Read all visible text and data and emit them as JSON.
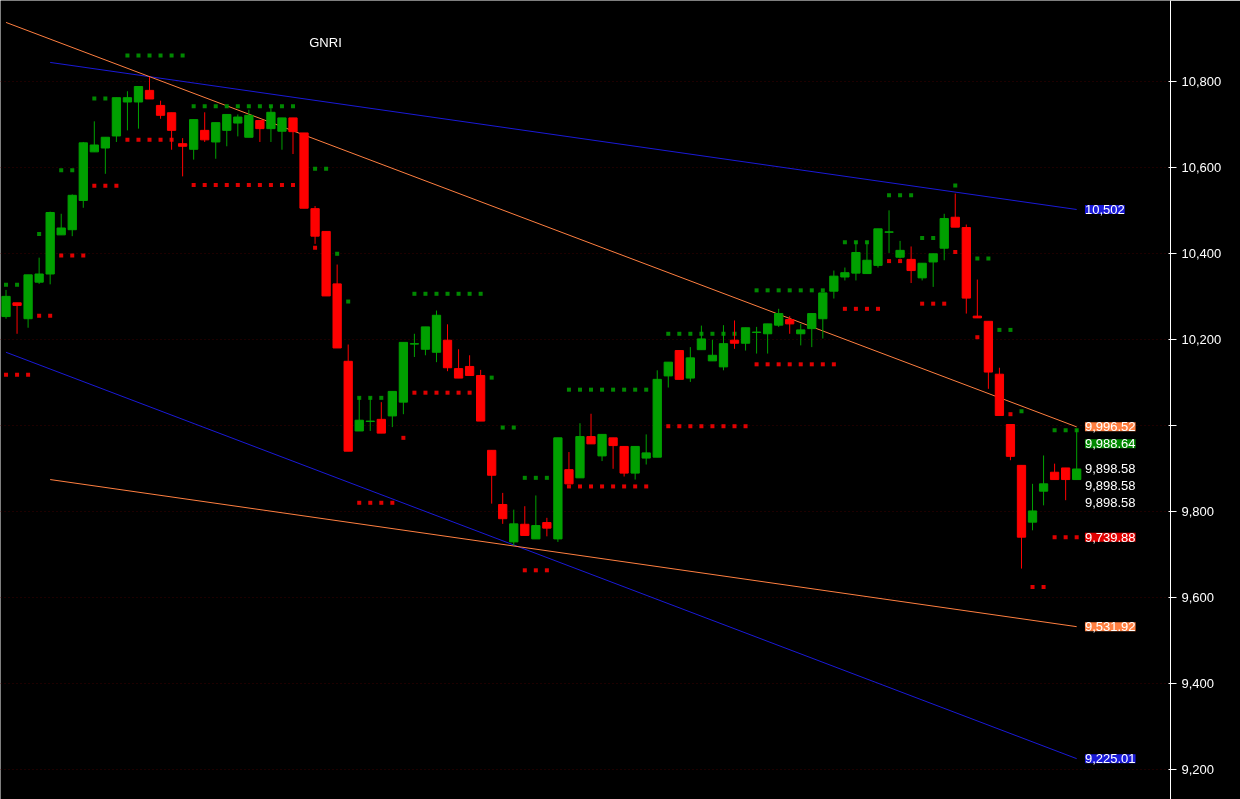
{
  "chart_data": {
    "type": "candlestick",
    "title": "GNRI",
    "categories": [
      null,
      null,
      null,
      null,
      null,
      null,
      null,
      null,
      null,
      null,
      null,
      null,
      null,
      null,
      null,
      null,
      null,
      null,
      null,
      null,
      null,
      null,
      null,
      null,
      null,
      null,
      null,
      null,
      null,
      null,
      null,
      null,
      null,
      null,
      null,
      null,
      null,
      null,
      null,
      null,
      null,
      null,
      null,
      null,
      null,
      null,
      null,
      null,
      null,
      null,
      null,
      null,
      null,
      null,
      null,
      null,
      null,
      null,
      null,
      null,
      null,
      null,
      null,
      null,
      null,
      null,
      null,
      null,
      null,
      null,
      null,
      null,
      null,
      null,
      null,
      null,
      null,
      null,
      null,
      null,
      null,
      null,
      null,
      null,
      null,
      null,
      null,
      null,
      null,
      null,
      null,
      null,
      null,
      null,
      null,
      null,
      null,
      null,
      null,
      null,
      null,
      null,
      null,
      null,
      null,
      null
    ],
    "ohlc": [
      [
        10253,
        10315,
        10248,
        10300
      ],
      [
        10285,
        10285,
        10213,
        10279
      ],
      [
        10248,
        10350,
        10227,
        10350
      ],
      [
        10333,
        10390,
        10329,
        10352
      ],
      [
        10352,
        10497,
        10328,
        10495
      ],
      [
        10443,
        10492,
        10443,
        10459
      ],
      [
        10455,
        10537,
        10440,
        10535
      ],
      [
        10523,
        10659,
        10506,
        10657
      ],
      [
        10636,
        10707,
        10636,
        10652
      ],
      [
        10645,
        10670,
        10585,
        10670
      ],
      [
        10673,
        10762,
        10659,
        10762
      ],
      [
        10752,
        10777,
        10686,
        10762
      ],
      [
        10752,
        10788,
        10690,
        10788
      ],
      [
        10779,
        10810,
        10759,
        10759
      ],
      [
        10744,
        10755,
        10713,
        10721
      ],
      [
        10727,
        10727,
        10641,
        10686
      ],
      [
        10655,
        10668,
        10579,
        10649
      ],
      [
        10642,
        10711,
        10618,
        10711
      ],
      [
        10686,
        10728,
        10659,
        10664
      ],
      [
        10659,
        10704,
        10620,
        10704
      ],
      [
        10686,
        10723,
        10649,
        10723
      ],
      [
        10703,
        10723,
        10672,
        10717
      ],
      [
        10670,
        10734,
        10670,
        10721
      ],
      [
        10709,
        10709,
        10659,
        10690
      ],
      [
        10690,
        10744,
        10659,
        10728
      ],
      [
        10684,
        10715,
        10641,
        10715
      ],
      [
        10715,
        10715,
        10631,
        10683
      ],
      [
        10680,
        10680,
        10505,
        10505
      ],
      [
        10504,
        10510,
        10422,
        10440
      ],
      [
        10451,
        10451,
        10301,
        10301
      ],
      [
        10329,
        10374,
        10180,
        10180
      ],
      [
        10149,
        10188,
        9940,
        9940
      ],
      [
        9987,
        10066,
        9987,
        10012
      ],
      [
        10009,
        10066,
        9987,
        10010
      ],
      [
        10014,
        10054,
        9982,
        9982
      ],
      [
        10022,
        10079,
        9996,
        10079
      ],
      [
        10054,
        10193,
        10026,
        10193
      ],
      [
        10189,
        10213,
        10159,
        10190
      ],
      [
        10177,
        10229,
        10163,
        10229
      ],
      [
        10170,
        10267,
        10147,
        10256
      ],
      [
        10198,
        10235,
        10126,
        10134
      ],
      [
        10132,
        10177,
        10110,
        10110
      ],
      [
        10137,
        10163,
        10116,
        10116
      ],
      [
        10116,
        10129,
        10010,
        10010
      ],
      [
        9942,
        9942,
        9818,
        9884
      ],
      [
        9816,
        9843,
        9771,
        9783
      ],
      [
        9729,
        9804,
        9721,
        9771
      ],
      [
        9770,
        9812,
        9744,
        9744
      ],
      [
        9736,
        9837,
        9736,
        9767
      ],
      [
        9774,
        9785,
        9742,
        9761
      ],
      [
        9736,
        9971,
        9729,
        9971
      ],
      [
        9897,
        9938,
        9864,
        9864
      ],
      [
        9878,
        10005,
        9878,
        9974
      ],
      [
        9974,
        10027,
        9957,
        9957
      ],
      [
        9929,
        9979,
        9917,
        9979
      ],
      [
        9971,
        9971,
        9899,
        9953
      ],
      [
        9951,
        9951,
        9881,
        9889
      ],
      [
        9889,
        9951,
        9874,
        9951
      ],
      [
        9924,
        9979,
        9909,
        9936
      ],
      [
        9926,
        10128,
        9926,
        10107
      ],
      [
        10115,
        10147,
        10088,
        10147
      ],
      [
        10174,
        10174,
        10107,
        10107
      ],
      [
        10110,
        10182,
        10101,
        10157
      ],
      [
        10176,
        10232,
        10176,
        10201
      ],
      [
        10150,
        10199,
        10150,
        10163
      ],
      [
        10136,
        10233,
        10128,
        10190
      ],
      [
        10198,
        10244,
        10178,
        10191
      ],
      [
        10191,
        10227,
        10174,
        10227
      ],
      [
        10216,
        10229,
        10167,
        10217
      ],
      [
        10213,
        10236,
        10167,
        10236
      ],
      [
        10233,
        10271,
        10229,
        10260
      ],
      [
        10246,
        10254,
        10213,
        10236
      ],
      [
        10213,
        10236,
        10186,
        10222
      ],
      [
        10225,
        10260,
        10182,
        10260
      ],
      [
        10248,
        10308,
        10202,
        10308
      ],
      [
        10312,
        10360,
        10295,
        10347
      ],
      [
        10345,
        10367,
        10337,
        10355
      ],
      [
        10354,
        10429,
        10337,
        10402
      ],
      [
        10353,
        10429,
        10353,
        10384
      ],
      [
        10372,
        10457,
        10367,
        10457
      ],
      [
        10449,
        10500,
        10401,
        10450
      ],
      [
        10391,
        10429,
        10388,
        10407
      ],
      [
        10386,
        10416,
        10331,
        10360
      ],
      [
        10343,
        10377,
        10337,
        10377
      ],
      [
        10380,
        10399,
        10322,
        10399
      ],
      [
        10412,
        10492,
        10384,
        10481
      ],
      [
        10484,
        10539,
        10461,
        10461
      ],
      [
        10460,
        10467,
        10260,
        10296
      ],
      [
        10254,
        10339,
        10250,
        10250
      ],
      [
        10242,
        10242,
        10085,
        10124
      ],
      [
        10119,
        10134,
        10023,
        10023
      ],
      [
        10002,
        10002,
        9919,
        9928
      ],
      [
        9907,
        9907,
        9667,
        9740
      ],
      [
        9775,
        9864,
        9756,
        9801
      ],
      [
        9847,
        9930,
        9814,
        9864
      ],
      [
        9891,
        9911,
        9874,
        9874
      ],
      [
        9901,
        9901,
        9826,
        9874
      ],
      [
        9874,
        9992,
        9874,
        9898.58
      ],
      null,
      null,
      null,
      null,
      null,
      null,
      null,
      null
    ],
    "colors": [
      "#00a000",
      "#ff0000",
      "#00a000",
      "#00a000",
      "#00a000",
      "#00a000",
      "#00a000",
      "#00a000",
      "#00a000",
      "#00a000",
      "#00a000",
      "#00a000",
      "#00a000",
      "#ff0000",
      "#ff0000",
      "#ff0000",
      "#ff0000",
      "#00a000",
      "#ff0000",
      "#00a000",
      "#00a000",
      "#00a000",
      "#00a000",
      "#ff0000",
      "#00a000",
      "#00a000",
      "#ff0000",
      "#ff0000",
      "#ff0000",
      "#ff0000",
      "#ff0000",
      "#ff0000",
      "#00a000",
      "#00a000",
      "#ff0000",
      "#00a000",
      "#00a000",
      "#00a000",
      "#00a000",
      "#00a000",
      "#ff0000",
      "#ff0000",
      "#ff0000",
      "#ff0000",
      "#ff0000",
      "#ff0000",
      "#00a000",
      "#ff0000",
      "#00a000",
      "#ff0000",
      "#00a000",
      "#ff0000",
      "#00a000",
      "#ff0000",
      "#00a000",
      "#ff0000",
      "#ff0000",
      "#00a000",
      "#00a000",
      "#00a000",
      "#00a000",
      "#ff0000",
      "#00a000",
      "#00a000",
      "#00a000",
      "#00a000",
      "#ff0000",
      "#00a000",
      "#00a000",
      "#00a000",
      "#00a000",
      "#ff0000",
      "#00a000",
      "#00a000",
      "#00a000",
      "#00a000",
      "#00a000",
      "#00a000",
      "#00a000",
      "#00a000",
      "#00a000",
      "#00a000",
      "#ff0000",
      "#00a000",
      "#00a000",
      "#00a000",
      "#ff0000",
      "#ff0000",
      "#ff0000",
      "#ff0000",
      "#ff0000",
      "#ff0000",
      "#ff0000",
      "#00a000",
      "#00a000",
      "#ff0000",
      "#ff0000",
      "#00a000",
      null,
      null,
      null,
      null,
      null,
      null,
      null,
      null
    ],
    "series": [
      {
        "type": "line",
        "color": "#1a1ad8",
        "values": [
          null,
          null,
          null,
          null,
          10844,
          null,
          null,
          null,
          null,
          null,
          null,
          null,
          null,
          null,
          null,
          null,
          null,
          null,
          null,
          null,
          null,
          null,
          null,
          null,
          null,
          null,
          null,
          null,
          null,
          null,
          null,
          null,
          null,
          null,
          null,
          null,
          null,
          null,
          null,
          null,
          null,
          null,
          null,
          null,
          null,
          null,
          null,
          null,
          null,
          null,
          null,
          null,
          null,
          null,
          null,
          null,
          null,
          null,
          null,
          null,
          null,
          null,
          null,
          null,
          null,
          null,
          null,
          null,
          null,
          null,
          null,
          null,
          null,
          null,
          null,
          null,
          null,
          null,
          null,
          null,
          null,
          null,
          null,
          null,
          null,
          null,
          null,
          null,
          null,
          null,
          null,
          null,
          null,
          null,
          null,
          null,
          null,
          10502,
          null,
          null,
          null,
          null,
          null,
          null,
          null,
          null
        ],
        "value_labels": [
          null,
          null,
          null,
          null,
          null,
          null,
          null,
          null,
          null,
          null,
          null,
          null,
          null,
          null,
          null,
          null,
          null,
          null,
          null,
          null,
          null,
          null,
          null,
          null,
          null,
          null,
          null,
          null,
          null,
          null,
          null,
          null,
          null,
          null,
          null,
          null,
          null,
          null,
          null,
          null,
          null,
          null,
          null,
          null,
          null,
          null,
          null,
          null,
          null,
          null,
          null,
          null,
          null,
          null,
          null,
          null,
          null,
          null,
          null,
          null,
          null,
          null,
          null,
          null,
          null,
          null,
          null,
          null,
          null,
          null,
          null,
          null,
          null,
          null,
          null,
          null,
          null,
          null,
          null,
          null,
          null,
          null,
          null,
          null,
          null,
          null,
          null,
          null,
          null,
          null,
          null,
          null,
          null,
          null,
          null,
          null,
          null,
          "10,502",
          null,
          null,
          null,
          null,
          null,
          null,
          null,
          null
        ]
      },
      {
        "type": "line",
        "color": "#1a1ad8",
        "values": [
          10170,
          null,
          null,
          null,
          null,
          null,
          null,
          null,
          null,
          null,
          null,
          null,
          null,
          null,
          null,
          null,
          null,
          null,
          null,
          null,
          null,
          null,
          null,
          null,
          null,
          null,
          null,
          null,
          null,
          null,
          null,
          null,
          null,
          null,
          null,
          null,
          null,
          null,
          null,
          null,
          null,
          null,
          null,
          null,
          null,
          null,
          null,
          null,
          null,
          null,
          null,
          null,
          null,
          null,
          null,
          null,
          null,
          null,
          null,
          null,
          null,
          null,
          null,
          null,
          null,
          null,
          null,
          null,
          null,
          null,
          null,
          null,
          null,
          null,
          null,
          null,
          null,
          null,
          null,
          null,
          null,
          null,
          null,
          null,
          null,
          null,
          null,
          null,
          null,
          null,
          null,
          null,
          null,
          null,
          null,
          null,
          null,
          9225.01,
          null,
          null,
          null,
          null,
          null,
          null,
          null,
          null
        ],
        "value_labels": [
          null,
          null,
          null,
          null,
          null,
          null,
          null,
          null,
          null,
          null,
          null,
          null,
          null,
          null,
          null,
          null,
          null,
          null,
          null,
          null,
          null,
          null,
          null,
          null,
          null,
          null,
          null,
          null,
          null,
          null,
          null,
          null,
          null,
          null,
          null,
          null,
          null,
          null,
          null,
          null,
          null,
          null,
          null,
          null,
          null,
          null,
          null,
          null,
          null,
          null,
          null,
          null,
          null,
          null,
          null,
          null,
          null,
          null,
          null,
          null,
          null,
          null,
          null,
          null,
          null,
          null,
          null,
          null,
          null,
          null,
          null,
          null,
          null,
          null,
          null,
          null,
          null,
          null,
          null,
          null,
          null,
          null,
          null,
          null,
          null,
          null,
          null,
          null,
          null,
          null,
          null,
          null,
          null,
          null,
          null,
          null,
          null,
          "9,225.01",
          null,
          null,
          null,
          null,
          null,
          null,
          null,
          null
        ]
      },
      {
        "type": "line",
        "color": "#ff7f40",
        "values": [
          10937,
          null,
          null,
          null,
          null,
          null,
          null,
          null,
          null,
          null,
          null,
          null,
          null,
          null,
          null,
          null,
          null,
          null,
          null,
          null,
          null,
          null,
          null,
          null,
          null,
          null,
          null,
          null,
          null,
          null,
          null,
          null,
          null,
          null,
          null,
          null,
          null,
          null,
          null,
          null,
          null,
          null,
          null,
          null,
          null,
          null,
          null,
          null,
          null,
          null,
          null,
          null,
          null,
          null,
          null,
          null,
          null,
          null,
          null,
          null,
          null,
          null,
          null,
          null,
          null,
          null,
          null,
          null,
          null,
          null,
          null,
          null,
          null,
          null,
          null,
          null,
          null,
          null,
          null,
          null,
          null,
          null,
          null,
          null,
          null,
          null,
          null,
          null,
          null,
          null,
          null,
          null,
          null,
          null,
          null,
          null,
          null,
          9996.52,
          null,
          null,
          null,
          null,
          null,
          null,
          null,
          null
        ],
        "value_labels": [
          null,
          null,
          null,
          null,
          null,
          null,
          null,
          null,
          null,
          null,
          null,
          null,
          null,
          null,
          null,
          null,
          null,
          null,
          null,
          null,
          null,
          null,
          null,
          null,
          null,
          null,
          null,
          null,
          null,
          null,
          null,
          null,
          null,
          null,
          null,
          null,
          null,
          null,
          null,
          null,
          null,
          null,
          null,
          null,
          null,
          null,
          null,
          null,
          null,
          null,
          null,
          null,
          null,
          null,
          null,
          null,
          null,
          null,
          null,
          null,
          null,
          null,
          null,
          null,
          null,
          null,
          null,
          null,
          null,
          null,
          null,
          null,
          null,
          null,
          null,
          null,
          null,
          null,
          null,
          null,
          null,
          null,
          null,
          null,
          null,
          null,
          null,
          null,
          null,
          null,
          null,
          null,
          null,
          null,
          null,
          null,
          null,
          "9,996.52",
          null,
          null,
          null,
          null,
          null,
          null,
          null,
          null
        ]
      },
      {
        "type": "line",
        "color": "#ff7f40",
        "values": [
          null,
          null,
          null,
          null,
          9874,
          null,
          null,
          null,
          null,
          null,
          null,
          null,
          null,
          null,
          null,
          null,
          null,
          null,
          null,
          null,
          null,
          null,
          null,
          null,
          null,
          null,
          null,
          null,
          null,
          null,
          null,
          null,
          null,
          null,
          null,
          null,
          null,
          null,
          null,
          null,
          null,
          null,
          null,
          null,
          null,
          null,
          null,
          null,
          null,
          null,
          null,
          null,
          null,
          null,
          null,
          null,
          null,
          null,
          null,
          null,
          null,
          null,
          null,
          null,
          null,
          null,
          null,
          null,
          null,
          null,
          null,
          null,
          null,
          null,
          null,
          null,
          null,
          null,
          null,
          null,
          null,
          null,
          null,
          null,
          null,
          null,
          null,
          null,
          null,
          null,
          null,
          null,
          null,
          null,
          null,
          null,
          null,
          9531.92,
          null,
          null,
          null,
          null,
          null,
          null,
          null,
          null
        ],
        "value_labels": [
          null,
          null,
          null,
          null,
          null,
          null,
          null,
          null,
          null,
          null,
          null,
          null,
          null,
          null,
          null,
          null,
          null,
          null,
          null,
          null,
          null,
          null,
          null,
          null,
          null,
          null,
          null,
          null,
          null,
          null,
          null,
          null,
          null,
          null,
          null,
          null,
          null,
          null,
          null,
          null,
          null,
          null,
          null,
          null,
          null,
          null,
          null,
          null,
          null,
          null,
          null,
          null,
          null,
          null,
          null,
          null,
          null,
          null,
          null,
          null,
          null,
          null,
          null,
          null,
          null,
          null,
          null,
          null,
          null,
          null,
          null,
          null,
          null,
          null,
          null,
          null,
          null,
          null,
          null,
          null,
          null,
          null,
          null,
          null,
          null,
          null,
          null,
          null,
          null,
          null,
          null,
          null,
          null,
          null,
          null,
          null,
          null,
          "9,531.92",
          null,
          null,
          null,
          null,
          null,
          null,
          null,
          null
        ]
      },
      {
        "type": "scatter",
        "marker": "square",
        "color": "#008800",
        "values": [
          10327,
          10327,
          null,
          10445,
          null,
          10593,
          10593,
          null,
          10760,
          10760,
          null,
          10860,
          10860,
          10860,
          10860,
          10860,
          10860,
          10742,
          10742,
          10742,
          10742,
          10742,
          10742,
          10742,
          10742,
          10742,
          10742,
          null,
          10597,
          10597,
          10399,
          10288,
          10064,
          10064,
          10064,
          null,
          null,
          10306,
          10306,
          10306,
          10306,
          10306,
          10306,
          10306,
          10111,
          9995,
          9995,
          9878,
          9878,
          9878,
          null,
          10083,
          10083,
          10083,
          10083,
          10083,
          10083,
          10083,
          10083,
          null,
          10213,
          10213,
          10213,
          10213,
          10213,
          10213,
          10213,
          null,
          10314,
          10314,
          10314,
          10314,
          10314,
          10314,
          10314,
          null,
          10426,
          10426,
          10426,
          null,
          10535,
          10535,
          10535,
          10436,
          10436,
          null,
          10558,
          null,
          10388,
          10388,
          10222,
          10222,
          10033,
          null,
          null,
          9988.64,
          9988.64,
          9988.64,
          null,
          null,
          null,
          null,
          null,
          null,
          null,
          null
        ],
        "value_labels": [
          null,
          null,
          null,
          null,
          null,
          null,
          null,
          null,
          null,
          null,
          null,
          null,
          null,
          null,
          null,
          null,
          null,
          null,
          null,
          null,
          null,
          null,
          null,
          null,
          null,
          null,
          null,
          null,
          null,
          null,
          null,
          null,
          null,
          null,
          null,
          null,
          null,
          null,
          null,
          null,
          null,
          null,
          null,
          null,
          null,
          null,
          null,
          null,
          null,
          null,
          null,
          null,
          null,
          null,
          null,
          null,
          null,
          null,
          null,
          null,
          null,
          null,
          null,
          null,
          null,
          null,
          null,
          null,
          null,
          null,
          null,
          null,
          null,
          null,
          null,
          null,
          null,
          null,
          null,
          null,
          null,
          null,
          null,
          null,
          null,
          null,
          null,
          null,
          null,
          null,
          null,
          null,
          null,
          null,
          null,
          null,
          null,
          "9,988.64",
          null,
          null,
          null,
          null,
          null,
          null,
          null,
          null
        ]
      },
      {
        "type": "scatter",
        "marker": "square",
        "color": "#e00000",
        "values": [
          10118,
          10118,
          10118,
          10255,
          10255,
          10395,
          10395,
          10395,
          10557,
          10557,
          10557,
          10664,
          10664,
          10664,
          10664,
          10664,
          null,
          10559,
          10559,
          10559,
          10559,
          10559,
          10559,
          10559,
          10559,
          10559,
          10559,
          null,
          10413,
          null,
          null,
          null,
          9820,
          9820,
          9820,
          9820,
          9971,
          10076,
          10076,
          10076,
          10076,
          10076,
          10076,
          null,
          null,
          null,
          null,
          9663,
          9663,
          9663,
          null,
          9858,
          9858,
          9858,
          9858,
          9858,
          9858,
          9858,
          9858,
          null,
          9998,
          9998,
          9998,
          9998,
          9998,
          9998,
          9998,
          9998,
          10142,
          10142,
          10142,
          10142,
          10142,
          10142,
          10142,
          10142,
          10271,
          10271,
          10271,
          10271,
          10382,
          10382,
          null,
          10283,
          10283,
          10283,
          10403,
          null,
          10205,
          null,
          null,
          10026,
          null,
          9624,
          9624,
          9739.88,
          9739.88,
          9739.88,
          null,
          null,
          null,
          null,
          null,
          null,
          null,
          null
        ],
        "value_labels": [
          null,
          null,
          null,
          null,
          null,
          null,
          null,
          null,
          null,
          null,
          null,
          null,
          null,
          null,
          null,
          null,
          null,
          null,
          null,
          null,
          null,
          null,
          null,
          null,
          null,
          null,
          null,
          null,
          null,
          null,
          null,
          null,
          null,
          null,
          null,
          null,
          null,
          null,
          null,
          null,
          null,
          null,
          null,
          null,
          null,
          null,
          null,
          null,
          null,
          null,
          null,
          null,
          null,
          null,
          null,
          null,
          null,
          null,
          null,
          null,
          null,
          null,
          null,
          null,
          null,
          null,
          null,
          null,
          null,
          null,
          null,
          null,
          null,
          null,
          null,
          null,
          null,
          null,
          null,
          null,
          null,
          null,
          null,
          null,
          null,
          null,
          null,
          null,
          null,
          null,
          null,
          null,
          null,
          null,
          null,
          null,
          null,
          "9,739.88",
          null,
          null,
          null,
          null,
          null,
          null,
          null,
          null
        ]
      }
    ],
    "annotations": [
      "9,898.58",
      "9,898.58",
      "9,898.58"
    ],
    "ylim": [
      9130,
      10988
    ],
    "yticks": [
      {
        "value": 9200,
        "label": "9,200"
      },
      {
        "value": 9400,
        "label": "9,400"
      },
      {
        "value": 9600,
        "label": "9,600"
      },
      {
        "value": 9800,
        "label": "9,800"
      },
      {
        "value": 10000,
        "label": null
      },
      {
        "value": 10200,
        "label": "10,200"
      },
      {
        "value": 10400,
        "label": "10,400"
      },
      {
        "value": 10600,
        "label": "10,600"
      },
      {
        "value": 10800,
        "label": "10,800"
      }
    ],
    "grid": "y"
  }
}
